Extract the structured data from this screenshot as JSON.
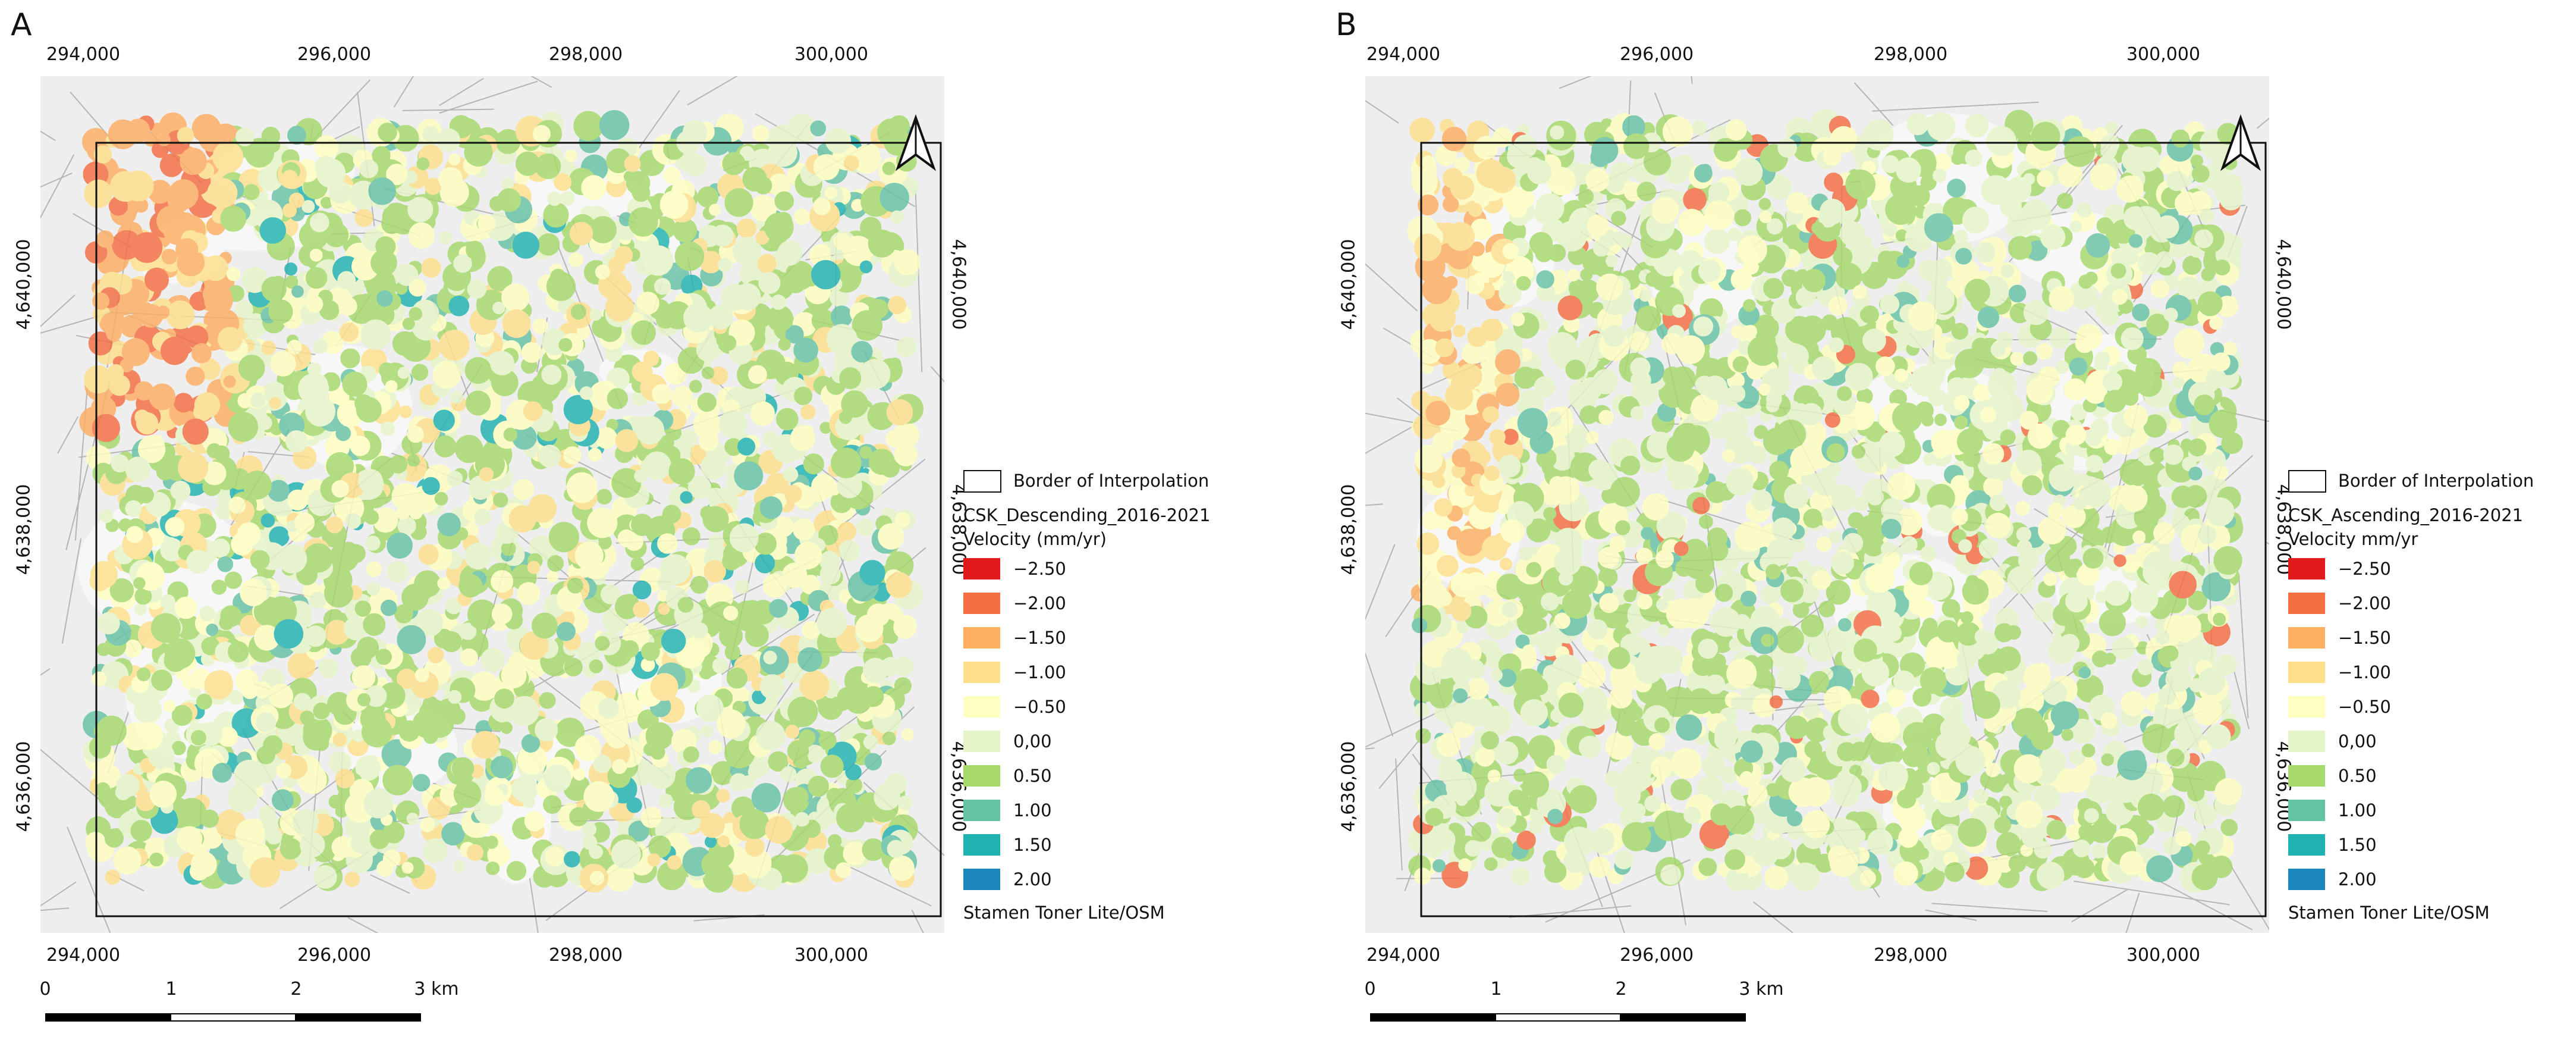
{
  "panels": [
    {
      "letter": "A",
      "x_ticks_top": [
        "294,000",
        "296,000",
        "298,000",
        "300,000"
      ],
      "x_ticks_bottom": [
        "294,000",
        "296,000",
        "298,000",
        "300,000"
      ],
      "y_ticks_left": [
        "4,640,000",
        "4,638,000",
        "4,636,000"
      ],
      "y_ticks_right": [
        "4,640,000",
        "4,638,000",
        "4,636,000"
      ],
      "legend": {
        "border_label": "Border of Interpolation",
        "layer_title": "CSK_Descending_2016-2021",
        "velocity_title": "Velocity (mm/yr)",
        "classes": [
          "−2.50",
          "−2.00",
          "−1.50",
          "−1.00",
          "−0.50",
          "0,00",
          "0.50",
          "1.00",
          "1.50",
          "2.00"
        ],
        "basemap_credit": "Stamen Toner Lite/OSM"
      },
      "scalebar": {
        "labels": [
          "0",
          "1",
          "2",
          "3 km"
        ]
      }
    },
    {
      "letter": "B",
      "x_ticks_top": [
        "294,000",
        "296,000",
        "298,000",
        "300,000"
      ],
      "x_ticks_bottom": [
        "294,000",
        "296,000",
        "298,000",
        "300,000"
      ],
      "y_ticks_left": [
        "4,640,000",
        "4,638,000",
        "4,636,000"
      ],
      "y_ticks_right": [
        "4,640,000",
        "4,638,000",
        "4,636,000"
      ],
      "legend": {
        "border_label": "Border of Interpolation",
        "layer_title": "CSK_Ascending_2016-2021",
        "velocity_title": "Velocity mm/yr",
        "classes": [
          "−2.50",
          "−2.00",
          "−1.50",
          "−1.00",
          "−0.50",
          "0,00",
          "0.50",
          "1.00",
          "1.50",
          "2.00"
        ],
        "basemap_credit": "Stamen Toner Lite/OSM"
      },
      "scalebar": {
        "labels": [
          "0",
          "1",
          "2",
          "3 km"
        ]
      }
    }
  ],
  "colors": {
    "class_colors": [
      "#e31a1c",
      "#f46d43",
      "#fdae61",
      "#fee08b",
      "#ffffbf",
      "#e6f5c9",
      "#a6d96a",
      "#66c2a4",
      "#1fb2b0",
      "#1a86bc"
    ],
    "basemap_bg": "#eeeeee",
    "roads": "#b5b5b5",
    "frame": "#111111"
  },
  "icons": {
    "north_arrow": "north-arrow-icon"
  }
}
